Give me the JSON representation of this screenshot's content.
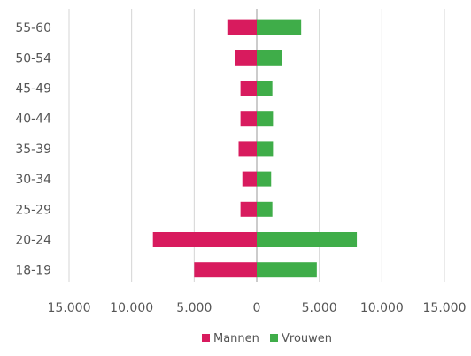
{
  "chart_data": {
    "type": "bar",
    "orientation": "horizontal-diverging",
    "categories": [
      "18-19",
      "20-24",
      "25-29",
      "30-34",
      "35-39",
      "40-44",
      "45-49",
      "50-54",
      "55-60"
    ],
    "series": [
      {
        "name": "Mannen",
        "color": "#d81b5e",
        "values": [
          5000,
          8300,
          1300,
          1150,
          1450,
          1300,
          1300,
          1750,
          2350
        ]
      },
      {
        "name": "Vrouwen",
        "color": "#3fad49",
        "values": [
          4800,
          8000,
          1250,
          1150,
          1300,
          1300,
          1250,
          2000,
          3550
        ]
      }
    ],
    "xlim": [
      -15000,
      15000
    ],
    "x_ticks": [
      -15000,
      -10000,
      -5000,
      0,
      5000,
      10000,
      15000
    ],
    "x_tick_labels": [
      "15.000",
      "10.000",
      "5.000",
      "0",
      "5.000",
      "10.000",
      "15.000"
    ],
    "grid": true,
    "legend_position": "bottom-center"
  }
}
